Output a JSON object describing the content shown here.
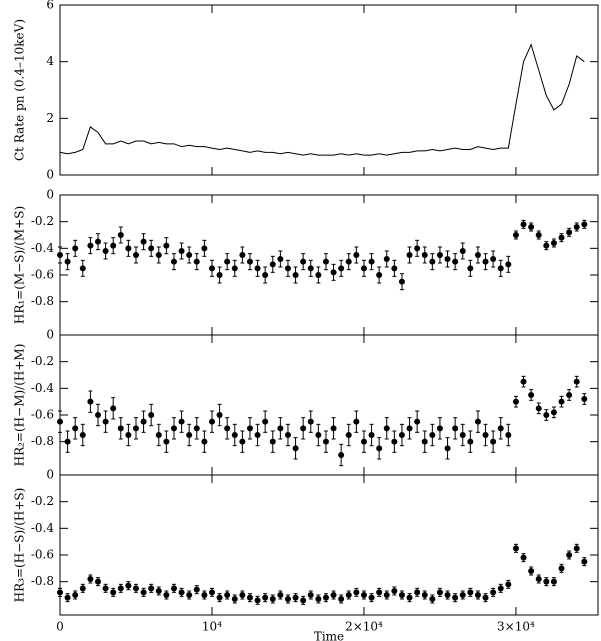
{
  "chart_data": [
    {
      "type": "line",
      "ylabel": "Ct Rate pn (0.4–10keV)",
      "color": "#000000",
      "x": [
        0,
        500,
        1000,
        1500,
        2000,
        2500,
        3000,
        3500,
        4000,
        4500,
        5000,
        5500,
        6000,
        6500,
        7000,
        7500,
        8000,
        8500,
        9000,
        9500,
        10000,
        10500,
        11000,
        11500,
        12000,
        12500,
        13000,
        13500,
        14000,
        14500,
        15000,
        15500,
        16000,
        16500,
        17000,
        17500,
        18000,
        18500,
        19000,
        19500,
        20000,
        20500,
        21000,
        21500,
        22000,
        22500,
        23000,
        23500,
        24000,
        24500,
        25000,
        25500,
        26000,
        26500,
        27000,
        27500,
        28000,
        28500,
        29000,
        29500,
        30000,
        30500,
        31000,
        31500,
        32000,
        32500,
        33000,
        33500,
        34000,
        34500
      ],
      "values": [
        0.8,
        0.75,
        0.8,
        0.9,
        1.7,
        1.5,
        1.1,
        1.1,
        1.2,
        1.1,
        1.2,
        1.2,
        1.1,
        1.15,
        1.1,
        1.1,
        1.0,
        1.05,
        1.0,
        1.0,
        0.95,
        0.9,
        0.95,
        0.9,
        0.85,
        0.8,
        0.85,
        0.8,
        0.8,
        0.75,
        0.8,
        0.75,
        0.7,
        0.75,
        0.7,
        0.7,
        0.7,
        0.75,
        0.7,
        0.75,
        0.7,
        0.7,
        0.75,
        0.7,
        0.75,
        0.8,
        0.8,
        0.85,
        0.85,
        0.9,
        0.85,
        0.9,
        0.95,
        0.9,
        0.9,
        1.0,
        0.95,
        0.9,
        0.95,
        0.95,
        2.5,
        4.0,
        4.6,
        3.7,
        2.8,
        2.3,
        2.5,
        3.2,
        4.2,
        4.0
      ],
      "xlim": [
        0,
        35400
      ],
      "ylim": [
        0,
        6
      ],
      "yticks": [
        0,
        2,
        4,
        6
      ],
      "xticks": [
        0,
        10000,
        20000,
        30000
      ]
    },
    {
      "type": "errorbar",
      "ylabel": "HR₁=(M−S)/(M+S)",
      "color": "#000000",
      "x": [
        0,
        500,
        1000,
        1500,
        2000,
        2500,
        3000,
        3500,
        4000,
        4500,
        5000,
        5500,
        6000,
        6500,
        7000,
        7500,
        8000,
        8500,
        9000,
        9500,
        10000,
        10500,
        11000,
        11500,
        12000,
        12500,
        13000,
        13500,
        14000,
        14500,
        15000,
        15500,
        16000,
        16500,
        17000,
        17500,
        18000,
        18500,
        19000,
        19500,
        20000,
        20500,
        21000,
        21500,
        22000,
        22500,
        23000,
        23500,
        24000,
        24500,
        25000,
        25500,
        26000,
        26500,
        27000,
        27500,
        28000,
        28500,
        29000,
        29500,
        30000,
        30500,
        31000,
        31500,
        32000,
        32500,
        33000,
        33500,
        34000,
        34500
      ],
      "values": [
        -0.45,
        -0.5,
        -0.4,
        -0.55,
        -0.38,
        -0.35,
        -0.42,
        -0.38,
        -0.3,
        -0.4,
        -0.45,
        -0.35,
        -0.4,
        -0.45,
        -0.38,
        -0.5,
        -0.42,
        -0.45,
        -0.5,
        -0.4,
        -0.55,
        -0.6,
        -0.5,
        -0.55,
        -0.45,
        -0.5,
        -0.55,
        -0.6,
        -0.52,
        -0.48,
        -0.55,
        -0.6,
        -0.5,
        -0.55,
        -0.6,
        -0.5,
        -0.58,
        -0.55,
        -0.5,
        -0.45,
        -0.55,
        -0.5,
        -0.6,
        -0.48,
        -0.55,
        -0.65,
        -0.45,
        -0.4,
        -0.45,
        -0.5,
        -0.45,
        -0.48,
        -0.5,
        -0.42,
        -0.55,
        -0.45,
        -0.5,
        -0.48,
        -0.55,
        -0.52,
        -0.3,
        -0.22,
        -0.24,
        -0.3,
        -0.38,
        -0.36,
        -0.32,
        -0.28,
        -0.24,
        -0.22
      ],
      "errors": [
        0.06,
        0.06,
        0.06,
        0.06,
        0.06,
        0.06,
        0.06,
        0.06,
        0.06,
        0.06,
        0.06,
        0.06,
        0.06,
        0.06,
        0.06,
        0.06,
        0.06,
        0.06,
        0.06,
        0.06,
        0.06,
        0.06,
        0.06,
        0.06,
        0.06,
        0.06,
        0.06,
        0.06,
        0.06,
        0.06,
        0.06,
        0.06,
        0.06,
        0.06,
        0.06,
        0.06,
        0.06,
        0.06,
        0.06,
        0.06,
        0.06,
        0.06,
        0.06,
        0.06,
        0.06,
        0.06,
        0.06,
        0.06,
        0.06,
        0.06,
        0.06,
        0.06,
        0.06,
        0.06,
        0.06,
        0.06,
        0.06,
        0.06,
        0.06,
        0.06,
        0.03,
        0.03,
        0.03,
        0.03,
        0.03,
        0.03,
        0.03,
        0.03,
        0.03,
        0.03
      ],
      "xlim": [
        0,
        35400
      ],
      "ylim": [
        -1.05,
        0
      ],
      "yticks": [
        0,
        -0.2,
        -0.4,
        -0.6,
        -0.8
      ],
      "xticks": [
        0,
        10000,
        20000,
        30000
      ]
    },
    {
      "type": "errorbar",
      "ylabel": "HR₂=(H−M)/(H+M)",
      "color": "#000000",
      "x": [
        0,
        500,
        1000,
        1500,
        2000,
        2500,
        3000,
        3500,
        4000,
        4500,
        5000,
        5500,
        6000,
        6500,
        7000,
        7500,
        8000,
        8500,
        9000,
        9500,
        10000,
        10500,
        11000,
        11500,
        12000,
        12500,
        13000,
        13500,
        14000,
        14500,
        15000,
        15500,
        16000,
        16500,
        17000,
        17500,
        18000,
        18500,
        19000,
        19500,
        20000,
        20500,
        21000,
        21500,
        22000,
        22500,
        23000,
        23500,
        24000,
        24500,
        25000,
        25500,
        26000,
        26500,
        27000,
        27500,
        28000,
        28500,
        29000,
        29500,
        30000,
        30500,
        31000,
        31500,
        32000,
        32500,
        33000,
        33500,
        34000,
        34500
      ],
      "values": [
        -0.65,
        -0.8,
        -0.7,
        -0.75,
        -0.5,
        -0.6,
        -0.65,
        -0.55,
        -0.7,
        -0.75,
        -0.7,
        -0.65,
        -0.6,
        -0.75,
        -0.8,
        -0.7,
        -0.65,
        -0.75,
        -0.7,
        -0.8,
        -0.65,
        -0.6,
        -0.7,
        -0.75,
        -0.8,
        -0.7,
        -0.75,
        -0.65,
        -0.8,
        -0.7,
        -0.75,
        -0.85,
        -0.7,
        -0.65,
        -0.75,
        -0.8,
        -0.7,
        -0.9,
        -0.75,
        -0.65,
        -0.8,
        -0.75,
        -0.85,
        -0.7,
        -0.8,
        -0.75,
        -0.7,
        -0.65,
        -0.8,
        -0.75,
        -0.7,
        -0.85,
        -0.7,
        -0.75,
        -0.8,
        -0.65,
        -0.75,
        -0.8,
        -0.7,
        -0.75,
        -0.5,
        -0.35,
        -0.45,
        -0.55,
        -0.6,
        -0.58,
        -0.5,
        -0.45,
        -0.35,
        -0.48
      ],
      "errors": [
        0.08,
        0.08,
        0.08,
        0.08,
        0.08,
        0.08,
        0.08,
        0.08,
        0.08,
        0.08,
        0.08,
        0.08,
        0.08,
        0.08,
        0.08,
        0.08,
        0.08,
        0.08,
        0.08,
        0.08,
        0.08,
        0.08,
        0.08,
        0.08,
        0.08,
        0.08,
        0.08,
        0.08,
        0.08,
        0.08,
        0.08,
        0.08,
        0.08,
        0.08,
        0.08,
        0.08,
        0.08,
        0.08,
        0.08,
        0.08,
        0.08,
        0.08,
        0.08,
        0.08,
        0.08,
        0.08,
        0.08,
        0.08,
        0.08,
        0.08,
        0.08,
        0.08,
        0.08,
        0.08,
        0.08,
        0.08,
        0.08,
        0.08,
        0.08,
        0.08,
        0.04,
        0.04,
        0.04,
        0.04,
        0.04,
        0.04,
        0.04,
        0.04,
        0.04,
        0.04
      ],
      "xlim": [
        0,
        35400
      ],
      "ylim": [
        -1.05,
        0
      ],
      "yticks": [
        0,
        -0.2,
        -0.4,
        -0.6,
        -0.8
      ],
      "xticks": [
        0,
        10000,
        20000,
        30000
      ]
    },
    {
      "type": "errorbar",
      "ylabel": "HR₃=(H−S)/(H+S)",
      "xlabel": "Time",
      "color": "#000000",
      "x": [
        0,
        500,
        1000,
        1500,
        2000,
        2500,
        3000,
        3500,
        4000,
        4500,
        5000,
        5500,
        6000,
        6500,
        7000,
        7500,
        8000,
        8500,
        9000,
        9500,
        10000,
        10500,
        11000,
        11500,
        12000,
        12500,
        13000,
        13500,
        14000,
        14500,
        15000,
        15500,
        16000,
        16500,
        17000,
        17500,
        18000,
        18500,
        19000,
        19500,
        20000,
        20500,
        21000,
        21500,
        22000,
        22500,
        23000,
        23500,
        24000,
        24500,
        25000,
        25500,
        26000,
        26500,
        27000,
        27500,
        28000,
        28500,
        29000,
        29500,
        30000,
        30500,
        31000,
        31500,
        32000,
        32500,
        33000,
        33500,
        34000,
        34500
      ],
      "values": [
        -0.88,
        -0.92,
        -0.9,
        -0.85,
        -0.78,
        -0.8,
        -0.85,
        -0.88,
        -0.85,
        -0.83,
        -0.85,
        -0.88,
        -0.85,
        -0.87,
        -0.9,
        -0.85,
        -0.88,
        -0.9,
        -0.86,
        -0.9,
        -0.88,
        -0.92,
        -0.9,
        -0.93,
        -0.9,
        -0.92,
        -0.94,
        -0.92,
        -0.93,
        -0.9,
        -0.93,
        -0.92,
        -0.94,
        -0.9,
        -0.93,
        -0.92,
        -0.9,
        -0.93,
        -0.9,
        -0.88,
        -0.9,
        -0.92,
        -0.88,
        -0.9,
        -0.87,
        -0.9,
        -0.92,
        -0.88,
        -0.9,
        -0.93,
        -0.88,
        -0.9,
        -0.92,
        -0.9,
        -0.88,
        -0.9,
        -0.92,
        -0.88,
        -0.85,
        -0.82,
        -0.55,
        -0.62,
        -0.72,
        -0.78,
        -0.8,
        -0.8,
        -0.7,
        -0.6,
        -0.55,
        -0.65
      ],
      "errors": [
        0.03,
        0.03,
        0.03,
        0.03,
        0.03,
        0.03,
        0.03,
        0.03,
        0.03,
        0.03,
        0.03,
        0.03,
        0.03,
        0.03,
        0.03,
        0.03,
        0.03,
        0.03,
        0.03,
        0.03,
        0.03,
        0.03,
        0.03,
        0.03,
        0.03,
        0.03,
        0.03,
        0.03,
        0.03,
        0.03,
        0.03,
        0.03,
        0.03,
        0.03,
        0.03,
        0.03,
        0.03,
        0.03,
        0.03,
        0.03,
        0.03,
        0.03,
        0.03,
        0.03,
        0.03,
        0.03,
        0.03,
        0.03,
        0.03,
        0.03,
        0.03,
        0.03,
        0.03,
        0.03,
        0.03,
        0.03,
        0.03,
        0.03,
        0.03,
        0.03,
        0.03,
        0.03,
        0.03,
        0.03,
        0.03,
        0.03,
        0.03,
        0.03,
        0.03,
        0.03
      ],
      "xlim": [
        0,
        35400
      ],
      "ylim": [
        -1.05,
        0
      ],
      "yticks": [
        0,
        -0.2,
        -0.4,
        -0.6,
        -0.8
      ],
      "xticks": [
        {
          "value": 0,
          "label": "0"
        },
        {
          "value": 10000,
          "label": "10⁴"
        },
        {
          "value": 20000,
          "label": "2×10⁴"
        },
        {
          "value": 30000,
          "label": "3×10⁴"
        }
      ]
    }
  ]
}
